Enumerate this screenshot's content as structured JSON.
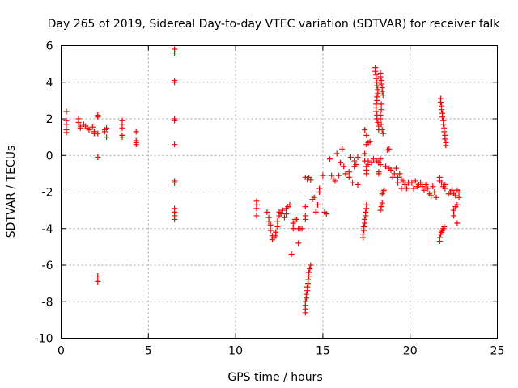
{
  "chart_data": {
    "type": "scatter",
    "title": "Day 265 of 2019, Sidereal Day-to-day VTEC variation (SDTVAR) for receiver falk",
    "xlabel": "GPS time / hours",
    "ylabel": "SDTVAR / TECUs",
    "xlim": [
      0,
      25
    ],
    "ylim": [
      -10,
      6
    ],
    "xticks": [
      0,
      5,
      10,
      15,
      20,
      25
    ],
    "yticks": [
      -10,
      -8,
      -6,
      -4,
      -2,
      0,
      2,
      4,
      6
    ],
    "grid": true,
    "marker": "+",
    "marker_color": "#ff0000",
    "series": [
      {
        "name": "SDTVAR",
        "points": [
          [
            0.3,
            2.4
          ],
          [
            0.3,
            1.9
          ],
          [
            0.3,
            1.7
          ],
          [
            0.3,
            1.4
          ],
          [
            0.3,
            1.25
          ],
          [
            1.0,
            2.0
          ],
          [
            1.0,
            1.8
          ],
          [
            1.1,
            1.6
          ],
          [
            1.1,
            1.5
          ],
          [
            1.3,
            1.7
          ],
          [
            1.4,
            1.6
          ],
          [
            1.5,
            1.5
          ],
          [
            1.6,
            1.4
          ],
          [
            1.8,
            1.55
          ],
          [
            1.9,
            1.3
          ],
          [
            1.9,
            1.2
          ],
          [
            2.1,
            2.2
          ],
          [
            2.1,
            2.1
          ],
          [
            2.1,
            1.2
          ],
          [
            2.1,
            -0.1
          ],
          [
            2.1,
            -6.6
          ],
          [
            2.1,
            -6.9
          ],
          [
            2.5,
            1.4
          ],
          [
            2.5,
            1.3
          ],
          [
            2.6,
            1.0
          ],
          [
            2.6,
            1.5
          ],
          [
            3.5,
            1.9
          ],
          [
            3.5,
            1.7
          ],
          [
            3.5,
            1.5
          ],
          [
            3.5,
            1.1
          ],
          [
            3.5,
            1.0
          ],
          [
            4.3,
            1.3
          ],
          [
            4.3,
            0.8
          ],
          [
            4.3,
            0.7
          ],
          [
            4.3,
            0.6
          ],
          [
            6.5,
            5.8
          ],
          [
            6.5,
            5.6
          ],
          [
            6.5,
            4.1
          ],
          [
            6.5,
            4.0
          ],
          [
            6.5,
            2.0
          ],
          [
            6.5,
            1.9
          ],
          [
            6.5,
            0.6
          ],
          [
            6.5,
            -1.4
          ],
          [
            6.5,
            -1.5
          ],
          [
            6.5,
            -2.9
          ],
          [
            6.5,
            -3.1
          ],
          [
            6.5,
            -3.3
          ],
          [
            6.5,
            -3.5
          ],
          [
            11.2,
            -2.5
          ],
          [
            11.2,
            -2.7
          ],
          [
            11.2,
            -2.9
          ],
          [
            11.2,
            -3.3
          ],
          [
            11.8,
            -3.1
          ],
          [
            11.9,
            -3.4
          ],
          [
            11.9,
            -3.6
          ],
          [
            12.0,
            -3.8
          ],
          [
            12.0,
            -4.1
          ],
          [
            12.1,
            -4.4
          ],
          [
            12.1,
            -4.6
          ],
          [
            12.2,
            -4.5
          ],
          [
            12.3,
            -4.2
          ],
          [
            12.3,
            -4.4
          ],
          [
            12.4,
            -3.9
          ],
          [
            12.4,
            -3.6
          ],
          [
            12.5,
            -3.3
          ],
          [
            12.5,
            -3.1
          ],
          [
            12.6,
            -3.2
          ],
          [
            12.7,
            -3.0
          ],
          [
            12.8,
            -3.4
          ],
          [
            12.9,
            -3.2
          ],
          [
            12.9,
            -2.9
          ],
          [
            13.0,
            -2.8
          ],
          [
            13.1,
            -2.7
          ],
          [
            13.2,
            -5.4
          ],
          [
            13.3,
            -4.0
          ],
          [
            13.3,
            -3.7
          ],
          [
            13.4,
            -3.5
          ],
          [
            13.5,
            -3.5
          ],
          [
            13.6,
            -4.8
          ],
          [
            13.6,
            -4.0
          ],
          [
            13.7,
            -4.0
          ],
          [
            13.8,
            -4.0
          ],
          [
            14.0,
            -8.6
          ],
          [
            14.0,
            -8.4
          ],
          [
            14.0,
            -8.2
          ],
          [
            14.0,
            -8.0
          ],
          [
            14.05,
            -7.8
          ],
          [
            14.05,
            -7.6
          ],
          [
            14.1,
            -7.4
          ],
          [
            14.1,
            -7.2
          ],
          [
            14.15,
            -7.0
          ],
          [
            14.15,
            -6.8
          ],
          [
            14.2,
            -6.6
          ],
          [
            14.2,
            -6.4
          ],
          [
            14.25,
            -6.2
          ],
          [
            14.3,
            -6.0
          ],
          [
            14.0,
            -1.2
          ],
          [
            14.1,
            -1.3
          ],
          [
            14.2,
            -1.2
          ],
          [
            14.3,
            -1.35
          ],
          [
            14.0,
            -3.5
          ],
          [
            14.0,
            -3.3
          ],
          [
            14.0,
            -2.8
          ],
          [
            14.4,
            -2.4
          ],
          [
            14.5,
            -2.3
          ],
          [
            14.6,
            -3.1
          ],
          [
            14.7,
            -2.7
          ],
          [
            14.8,
            -2.0
          ],
          [
            14.8,
            -1.8
          ],
          [
            15.0,
            -1.1
          ],
          [
            15.1,
            -3.1
          ],
          [
            15.2,
            -3.2
          ],
          [
            15.4,
            -0.2
          ],
          [
            15.5,
            -1.1
          ],
          [
            15.6,
            -1.3
          ],
          [
            15.7,
            -1.4
          ],
          [
            15.8,
            0.1
          ],
          [
            15.9,
            -1.1
          ],
          [
            16.0,
            -0.4
          ],
          [
            16.1,
            0.35
          ],
          [
            16.2,
            -0.6
          ],
          [
            16.3,
            -1.0
          ],
          [
            16.5,
            -1.2
          ],
          [
            16.5,
            -0.9
          ],
          [
            16.6,
            -0.1
          ],
          [
            16.7,
            -1.5
          ],
          [
            16.8,
            -0.3
          ],
          [
            16.8,
            -0.6
          ],
          [
            16.9,
            -0.5
          ],
          [
            17.0,
            -0.1
          ],
          [
            17.0,
            -1.6
          ],
          [
            17.3,
            -4.5
          ],
          [
            17.3,
            -4.3
          ],
          [
            17.35,
            -4.1
          ],
          [
            17.35,
            -3.9
          ],
          [
            17.4,
            -3.7
          ],
          [
            17.4,
            -3.5
          ],
          [
            17.45,
            -3.3
          ],
          [
            17.45,
            -3.1
          ],
          [
            17.5,
            -2.9
          ],
          [
            17.5,
            -2.7
          ],
          [
            17.4,
            -0.3
          ],
          [
            17.4,
            0.1
          ],
          [
            17.5,
            -0.6
          ],
          [
            17.5,
            -0.8
          ],
          [
            17.5,
            -1.0
          ],
          [
            17.6,
            -0.5
          ],
          [
            17.6,
            -0.3
          ],
          [
            17.5,
            0.6
          ],
          [
            17.6,
            0.7
          ],
          [
            17.7,
            0.75
          ],
          [
            17.8,
            -0.4
          ],
          [
            17.9,
            -0.2
          ],
          [
            17.4,
            1.4
          ],
          [
            17.5,
            1.1
          ],
          [
            18.0,
            4.8
          ],
          [
            18.0,
            4.6
          ],
          [
            18.05,
            4.4
          ],
          [
            18.05,
            4.2
          ],
          [
            18.1,
            4.0
          ],
          [
            18.1,
            3.8
          ],
          [
            18.15,
            3.6
          ],
          [
            18.15,
            3.4
          ],
          [
            18.1,
            3.2
          ],
          [
            18.1,
            3.0
          ],
          [
            18.05,
            2.8
          ],
          [
            18.05,
            2.6
          ],
          [
            18.05,
            2.4
          ],
          [
            18.1,
            2.2
          ],
          [
            18.1,
            2.0
          ],
          [
            18.15,
            1.8
          ],
          [
            18.2,
            1.6
          ],
          [
            18.2,
            1.4
          ],
          [
            18.3,
            4.5
          ],
          [
            18.3,
            4.3
          ],
          [
            18.35,
            4.1
          ],
          [
            18.35,
            3.9
          ],
          [
            18.4,
            3.7
          ],
          [
            18.4,
            3.5
          ],
          [
            18.45,
            3.3
          ],
          [
            18.35,
            2.8
          ],
          [
            18.35,
            2.5
          ],
          [
            18.3,
            2.2
          ],
          [
            18.3,
            2.0
          ],
          [
            18.35,
            1.7
          ],
          [
            18.4,
            1.4
          ],
          [
            18.45,
            1.2
          ],
          [
            18.1,
            -0.3
          ],
          [
            18.2,
            -0.4
          ],
          [
            18.3,
            -0.2
          ],
          [
            18.3,
            -0.5
          ],
          [
            18.2,
            -0.9
          ],
          [
            18.2,
            -1.0
          ],
          [
            18.3,
            -3.0
          ],
          [
            18.35,
            -2.8
          ],
          [
            18.4,
            -2.6
          ],
          [
            18.4,
            -2.1
          ],
          [
            18.45,
            -2.0
          ],
          [
            18.5,
            -1.9
          ],
          [
            18.6,
            -0.6
          ],
          [
            18.7,
            0.3
          ],
          [
            18.8,
            0.35
          ],
          [
            18.8,
            -0.7
          ],
          [
            18.9,
            -0.8
          ],
          [
            19.0,
            -1.2
          ],
          [
            19.1,
            -1.0
          ],
          [
            19.2,
            -0.7
          ],
          [
            19.3,
            -1.2
          ],
          [
            19.3,
            -1.5
          ],
          [
            19.4,
            -1.0
          ],
          [
            19.5,
            -1.3
          ],
          [
            19.5,
            -1.8
          ],
          [
            19.6,
            -1.4
          ],
          [
            19.7,
            -1.6
          ],
          [
            19.8,
            -1.8
          ],
          [
            19.9,
            -1.5
          ],
          [
            20.1,
            -1.5
          ],
          [
            20.2,
            -1.8
          ],
          [
            20.3,
            -1.4
          ],
          [
            20.4,
            -1.7
          ],
          [
            20.5,
            -1.6
          ],
          [
            20.6,
            -1.5
          ],
          [
            20.7,
            -1.7
          ],
          [
            20.8,
            -1.9
          ],
          [
            20.9,
            -1.6
          ],
          [
            21.0,
            -1.8
          ],
          [
            21.1,
            -2.1
          ],
          [
            21.2,
            -2.2
          ],
          [
            21.3,
            -1.7
          ],
          [
            21.4,
            -2.0
          ],
          [
            21.5,
            -2.3
          ],
          [
            21.7,
            -1.2
          ],
          [
            21.7,
            -1.4
          ],
          [
            21.8,
            -1.5
          ],
          [
            21.9,
            -1.7
          ],
          [
            22.0,
            -1.8
          ],
          [
            22.0,
            -1.6
          ],
          [
            21.75,
            3.1
          ],
          [
            21.75,
            2.9
          ],
          [
            21.8,
            2.7
          ],
          [
            21.8,
            2.5
          ],
          [
            21.85,
            2.3
          ],
          [
            21.85,
            2.1
          ],
          [
            21.9,
            1.9
          ],
          [
            21.9,
            1.7
          ],
          [
            21.95,
            1.5
          ],
          [
            21.95,
            1.3
          ],
          [
            22.0,
            1.1
          ],
          [
            22.0,
            0.9
          ],
          [
            22.05,
            0.7
          ],
          [
            22.05,
            0.55
          ],
          [
            21.7,
            -4.7
          ],
          [
            21.7,
            -4.5
          ],
          [
            21.75,
            -4.3
          ],
          [
            21.8,
            -4.2
          ],
          [
            21.85,
            -4.1
          ],
          [
            21.9,
            -4.0
          ],
          [
            21.95,
            -3.9
          ],
          [
            22.2,
            -2.1
          ],
          [
            22.3,
            -2.0
          ],
          [
            22.4,
            -1.9
          ],
          [
            22.5,
            -2.1
          ],
          [
            22.5,
            -3.0
          ],
          [
            22.5,
            -3.3
          ],
          [
            22.6,
            -2.2
          ],
          [
            22.6,
            -2.8
          ],
          [
            22.7,
            -1.9
          ],
          [
            22.7,
            -2.7
          ],
          [
            22.7,
            -3.7
          ],
          [
            22.8,
            -2.0
          ],
          [
            22.8,
            -2.3
          ]
        ]
      }
    ]
  }
}
